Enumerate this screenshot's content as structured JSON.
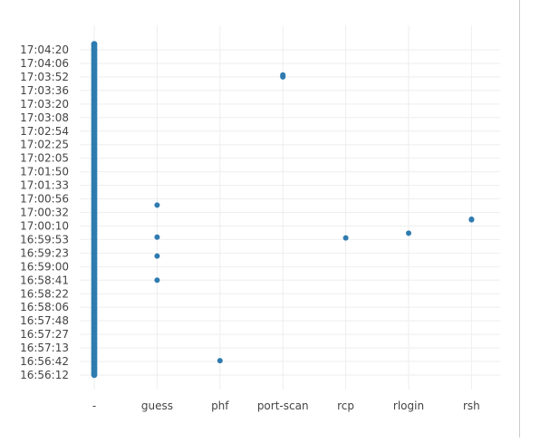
{
  "chart_data": {
    "type": "scatter",
    "title": "",
    "xlabel": "",
    "ylabel": "",
    "grid": true,
    "point_color": "#2f7bb0",
    "categories": [
      "-",
      "guess",
      "phf",
      "port-scan",
      "rcp",
      "rlogin",
      "rsh"
    ],
    "y_ticks": [
      "16:56:12",
      "16:56:42",
      "16:57:13",
      "16:57:27",
      "16:57:48",
      "16:58:06",
      "16:58:22",
      "16:58:41",
      "16:59:00",
      "16:59:23",
      "16:59:53",
      "17:00:10",
      "17:00:32",
      "17:00:56",
      "17:01:33",
      "17:01:50",
      "17:02:05",
      "17:02:25",
      "17:02:54",
      "17:03:08",
      "17:03:20",
      "17:03:36",
      "17:03:52",
      "17:04:06",
      "17:04:20"
    ],
    "points": [
      {
        "x": "guess",
        "y": "17:00:45"
      },
      {
        "x": "guess",
        "y": "16:59:56"
      },
      {
        "x": "guess",
        "y": "16:59:18"
      },
      {
        "x": "guess",
        "y": "16:58:41"
      },
      {
        "x": "phf",
        "y": "16:56:44"
      },
      {
        "x": "port-scan",
        "y": "17:03:52"
      },
      {
        "x": "port-scan",
        "y": "17:03:53"
      },
      {
        "x": "port-scan",
        "y": "17:03:54"
      },
      {
        "x": "rcp",
        "y": "16:59:55"
      },
      {
        "x": "rlogin",
        "y": "17:00:01"
      },
      {
        "x": "rsh",
        "y": "17:00:20"
      },
      {
        "x": "rsh",
        "y": "17:00:21"
      }
    ],
    "dense_series": {
      "x": "-",
      "y_from": "16:56:10",
      "y_to": "17:04:26"
    }
  }
}
